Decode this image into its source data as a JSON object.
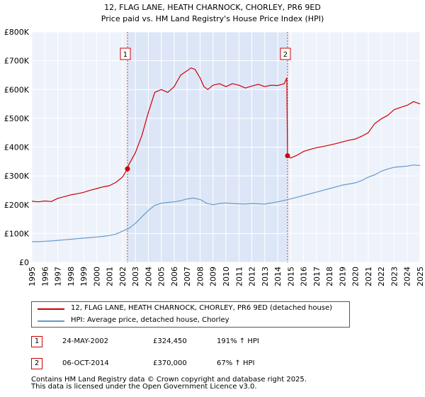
{
  "chart_data": {
    "type": "line",
    "title": "12, FLAG LANE, HEATH CHARNOCK, CHORLEY, PR6 9ED",
    "subtitle": "Price paid vs. HM Land Registry's House Price Index (HPI)",
    "xlabel": "",
    "ylabel": "",
    "xlim": [
      1995,
      2025
    ],
    "ylim": [
      0,
      800000
    ],
    "x_ticks": [
      "1995",
      "1996",
      "1997",
      "1998",
      "1999",
      "2000",
      "2001",
      "2002",
      "2003",
      "2004",
      "2005",
      "2006",
      "2007",
      "2008",
      "2009",
      "2010",
      "2011",
      "2012",
      "2013",
      "2014",
      "2015",
      "2016",
      "2017",
      "2018",
      "2019",
      "2020",
      "2021",
      "2022",
      "2023",
      "2024",
      "2025"
    ],
    "y_ticks": [
      {
        "value": 0,
        "label": "£0"
      },
      {
        "value": 100000,
        "label": "£100K"
      },
      {
        "value": 200000,
        "label": "£200K"
      },
      {
        "value": 300000,
        "label": "£300K"
      },
      {
        "value": 400000,
        "label": "£400K"
      },
      {
        "value": 500000,
        "label": "£500K"
      },
      {
        "value": 600000,
        "label": "£600K"
      },
      {
        "value": 700000,
        "label": "£700K"
      },
      {
        "value": 800000,
        "label": "£800K"
      }
    ],
    "grid": true,
    "shaded_region": {
      "from": 2002.39,
      "to": 2014.76
    },
    "series": [
      {
        "name": "12, FLAG LANE, HEATH CHARNOCK, CHORLEY, PR6 9ED (detached house)",
        "color": "#cc0000",
        "x": [
          1995.0,
          1995.5,
          1996.0,
          1996.5,
          1997.0,
          1997.5,
          1998.0,
          1998.5,
          1999.0,
          1999.5,
          2000.0,
          2000.5,
          2001.0,
          2001.5,
          2002.0,
          2002.39,
          2002.5,
          2003.0,
          2003.5,
          2004.0,
          2004.5,
          2005.0,
          2005.5,
          2006.0,
          2006.5,
          2007.0,
          2007.3,
          2007.6,
          2008.0,
          2008.3,
          2008.6,
          2009.0,
          2009.5,
          2010.0,
          2010.5,
          2011.0,
          2011.5,
          2012.0,
          2012.5,
          2013.0,
          2013.5,
          2014.0,
          2014.5,
          2014.7,
          2014.76,
          2015.0,
          2015.5,
          2016.0,
          2016.5,
          2017.0,
          2017.5,
          2018.0,
          2018.5,
          2019.0,
          2019.5,
          2020.0,
          2020.5,
          2021.0,
          2021.5,
          2022.0,
          2022.5,
          2023.0,
          2023.5,
          2024.0,
          2024.5,
          2025.0
        ],
        "values": [
          212000,
          210000,
          213000,
          211000,
          222000,
          228000,
          234000,
          238000,
          243000,
          250000,
          256000,
          262000,
          266000,
          278000,
          296000,
          324450,
          340000,
          380000,
          440000,
          520000,
          590000,
          600000,
          590000,
          610000,
          650000,
          665000,
          675000,
          670000,
          640000,
          610000,
          600000,
          615000,
          620000,
          610000,
          620000,
          615000,
          605000,
          612000,
          618000,
          610000,
          615000,
          614000,
          620000,
          640000,
          370000,
          362000,
          372000,
          385000,
          392000,
          398000,
          402000,
          407000,
          412000,
          418000,
          424000,
          428000,
          438000,
          450000,
          482000,
          498000,
          510000,
          530000,
          538000,
          545000,
          558000,
          550000
        ]
      },
      {
        "name": "HPI: Average price, detached house, Chorley",
        "color": "#6699cc",
        "x": [
          1995.0,
          1995.5,
          1996.0,
          1996.5,
          1997.0,
          1997.5,
          1998.0,
          1998.5,
          1999.0,
          1999.5,
          2000.0,
          2000.5,
          2001.0,
          2001.5,
          2002.0,
          2002.5,
          2003.0,
          2003.5,
          2004.0,
          2004.5,
          2005.0,
          2005.5,
          2006.0,
          2006.5,
          2007.0,
          2007.5,
          2008.0,
          2008.5,
          2009.0,
          2009.5,
          2010.0,
          2010.5,
          2011.0,
          2011.5,
          2012.0,
          2012.5,
          2013.0,
          2013.5,
          2014.0,
          2014.5,
          2015.0,
          2015.5,
          2016.0,
          2016.5,
          2017.0,
          2017.5,
          2018.0,
          2018.5,
          2019.0,
          2019.5,
          2020.0,
          2020.5,
          2021.0,
          2021.5,
          2022.0,
          2022.5,
          2023.0,
          2023.5,
          2024.0,
          2024.5,
          2025.0
        ],
        "values": [
          72000,
          71500,
          73000,
          74000,
          76000,
          78000,
          80000,
          82000,
          84000,
          86000,
          88000,
          90000,
          93000,
          98000,
          108000,
          118000,
          135000,
          158000,
          180000,
          198000,
          205000,
          208000,
          210000,
          214000,
          220000,
          223000,
          218000,
          205000,
          200000,
          204000,
          206000,
          204000,
          203000,
          202000,
          204000,
          203000,
          202000,
          206000,
          210000,
          215000,
          220000,
          226000,
          232000,
          238000,
          244000,
          250000,
          256000,
          262000,
          268000,
          272000,
          276000,
          284000,
          296000,
          304000,
          316000,
          324000,
          330000,
          332000,
          334000,
          338000,
          336000
        ]
      }
    ],
    "annotations": [
      {
        "label": "1",
        "x": 2002.39,
        "y": 324450
      },
      {
        "label": "2",
        "x": 2014.76,
        "y": 370000
      }
    ]
  },
  "legend": {
    "items": [
      {
        "label": "12, FLAG LANE, HEATH CHARNOCK, CHORLEY, PR6 9ED (detached house)",
        "color": "#cc0000"
      },
      {
        "label": "HPI: Average price, detached house, Chorley",
        "color": "#6699cc"
      }
    ]
  },
  "sales": [
    {
      "marker": "1",
      "date": "24-MAY-2002",
      "price": "£324,450",
      "hpi": "191% ↑ HPI"
    },
    {
      "marker": "2",
      "date": "06-OCT-2014",
      "price": "£370,000",
      "hpi": "67% ↑ HPI"
    }
  ],
  "footer": {
    "line1": "Contains HM Land Registry data © Crown copyright and database right 2025.",
    "line2": "This data is licensed under the Open Government Licence v3.0."
  }
}
